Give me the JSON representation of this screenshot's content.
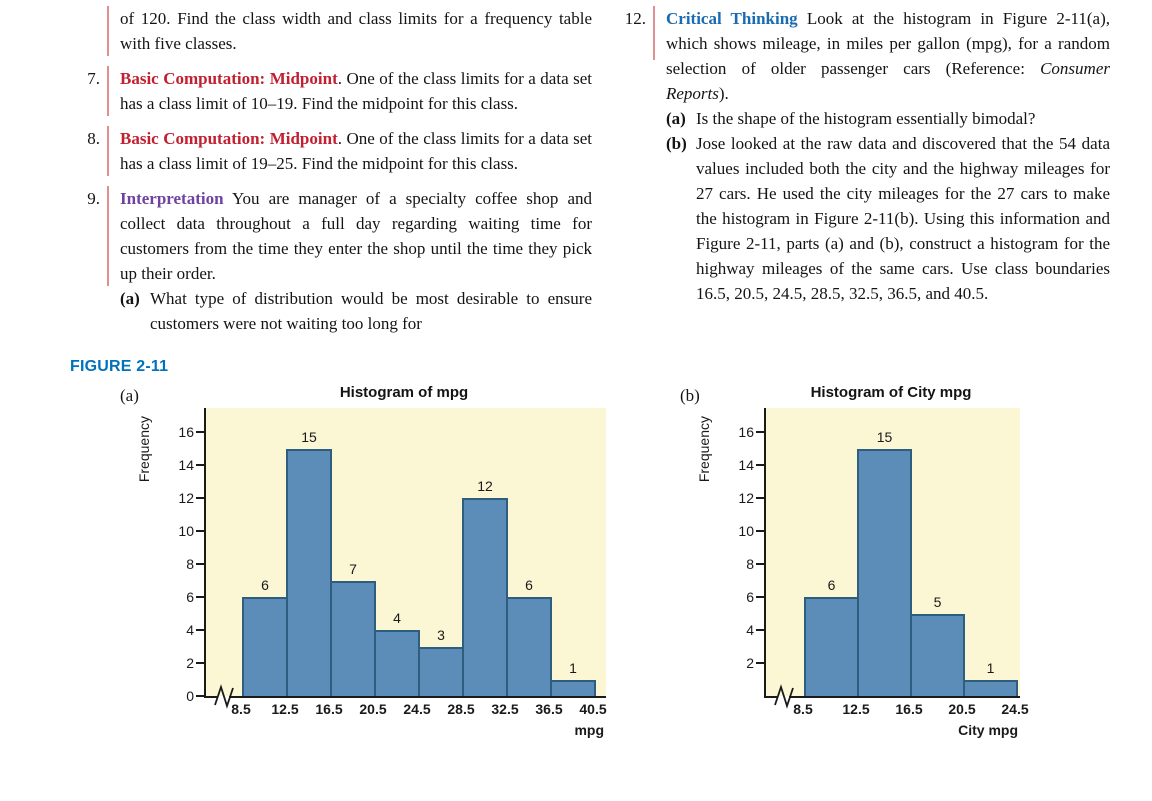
{
  "exercises": {
    "partial": {
      "text": "of 120. Find the class width and class limits for a frequency table with five classes."
    },
    "e7": {
      "number": "7.",
      "lead": "Basic Computation: Midpoint",
      "body": ". One of the class limits for a data set has a class limit of 10–19. Find the midpoint for this class."
    },
    "e8": {
      "number": "8.",
      "lead": "Basic Computation: Midpoint",
      "body": ". One of the class limits for a data set has a class limit of 19–25. Find the midpoint for this class."
    },
    "e9": {
      "number": "9.",
      "lead": "Interpretation",
      "body": " You are manager of a specialty coffee shop and collect data throughout a full day regarding waiting time for customers from the time they enter the shop until the time they pick up their order.",
      "sub_a_label": "(a)",
      "sub_a": "What type of distribution would be most desirable to ensure customers were not waiting too long for"
    },
    "e12": {
      "number": "12.",
      "lead": "Critical Thinking",
      "body1": " Look at the histogram in Figure 2-11(a), which shows mileage, in miles per gallon (mpg), for a random selection of older passenger cars (Reference: ",
      "body_italic": "Consumer Reports",
      "body2": ").",
      "sub_a_label": "(a)",
      "sub_a": "Is the shape of the histogram essentially bimodal?",
      "sub_b_label": "(b)",
      "sub_b": "Jose looked at the raw data and discovered that the 54 data values included both the city and the highway mileages for 27 cars. He used the city mileages for the 27 cars to make the histogram in Figure 2-11(b). Using this information and Figure 2-11, parts (a) and (b), construct a histogram for the highway mileages of the same cars. Use class boundaries 16.5, 20.5, 24.5, 28.5, 32.5, 36.5, and 40.5."
    }
  },
  "figure": {
    "label": "FIGURE 2-11"
  },
  "chart_data": [
    {
      "type": "bar",
      "panel_label": "(a)",
      "title": "Histogram of mpg",
      "ylabel": "Frequency",
      "xlabel": "mpg",
      "boundaries": [
        8.5,
        12.5,
        16.5,
        20.5,
        24.5,
        28.5,
        32.5,
        36.5,
        40.5
      ],
      "values": [
        6,
        15,
        7,
        4,
        3,
        12,
        6,
        1
      ],
      "yticks": [
        0,
        2,
        4,
        6,
        8,
        10,
        12,
        14,
        16
      ],
      "ylim": [
        0,
        17
      ],
      "axis_break": true,
      "grid": false,
      "bar_color": "#5b8db8",
      "bar_border": "#2f5d7e",
      "plot_bg": "#fbf7d5"
    },
    {
      "type": "bar",
      "panel_label": "(b)",
      "title": "Histogram of City mpg",
      "ylabel": "Frequency",
      "xlabel": "City mpg",
      "boundaries": [
        8.5,
        12.5,
        16.5,
        20.5,
        24.5
      ],
      "values": [
        6,
        15,
        5,
        1
      ],
      "yticks": [
        2,
        4,
        6,
        8,
        10,
        12,
        14,
        16
      ],
      "ylim": [
        0,
        17
      ],
      "axis_break": true,
      "grid": false,
      "bar_color": "#5b8db8",
      "bar_border": "#2f5d7e",
      "plot_bg": "#fbf7d5"
    }
  ],
  "colors": {
    "heading_red": "#c21f30",
    "heading_purple": "#6f42a0",
    "heading_blue": "#1b6bb0",
    "figure_blue": "#0072bc",
    "rule_red": "#e09090",
    "bar_fill": "#5b8db8",
    "bar_border": "#2f5d7e",
    "plot_bg": "#fbf7d5"
  }
}
